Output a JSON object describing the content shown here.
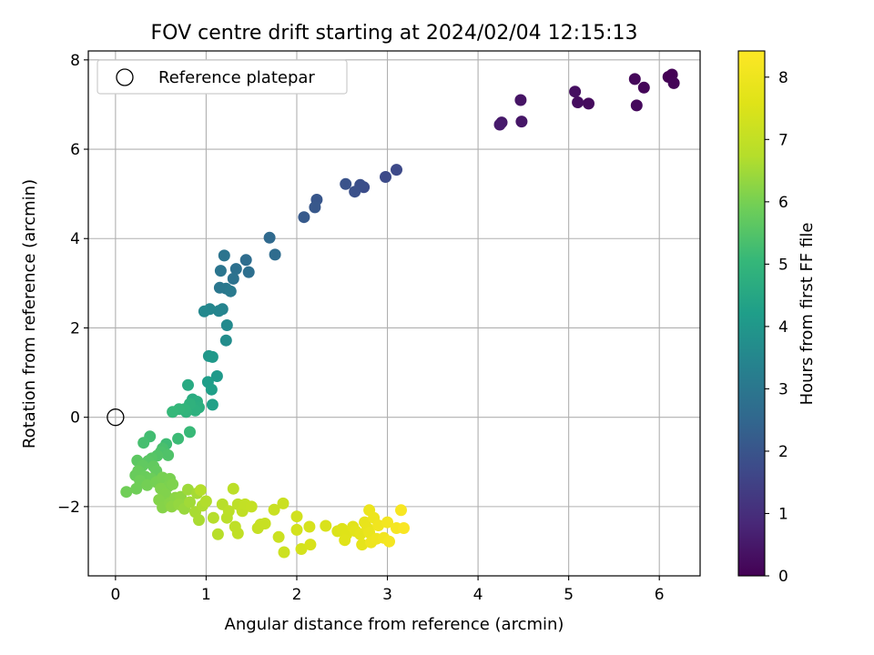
{
  "chart_data": {
    "type": "scatter",
    "title": "FOV centre drift starting at 2024/02/04 12:15:13",
    "xlabel": "Angular distance from reference (arcmin)",
    "ylabel": "Rotation from reference (arcmin)",
    "xlim": [
      -0.3,
      6.45
    ],
    "ylim": [
      -3.55,
      8.2
    ],
    "xticks": [
      0,
      1,
      2,
      3,
      4,
      5,
      6
    ],
    "yticks": [
      -2,
      0,
      2,
      4,
      6,
      8
    ],
    "grid": true,
    "legend": {
      "placement": "top-left",
      "entries": [
        {
          "label": "Reference platepar",
          "marker": "open-circle"
        }
      ]
    },
    "reference_point": {
      "x": 0,
      "y": 0
    },
    "colorbar": {
      "label": "Hours from first FF file",
      "min": 0,
      "max": 8.42,
      "ticks": [
        0,
        1,
        2,
        3,
        4,
        5,
        6,
        7,
        8
      ],
      "colormap": "viridis"
    },
    "series": [
      {
        "points": [
          {
            "x": 6.1,
            "y": 7.62,
            "h": 0.0
          },
          {
            "x": 6.14,
            "y": 7.67,
            "h": 0.03
          },
          {
            "x": 6.16,
            "y": 7.48,
            "h": 0.06
          },
          {
            "x": 5.83,
            "y": 7.38,
            "h": 0.1
          },
          {
            "x": 5.73,
            "y": 7.57,
            "h": 0.14
          },
          {
            "x": 5.75,
            "y": 6.98,
            "h": 0.18
          },
          {
            "x": 5.22,
            "y": 7.02,
            "h": 0.22
          },
          {
            "x": 5.1,
            "y": 7.05,
            "h": 0.26
          },
          {
            "x": 5.07,
            "y": 7.29,
            "h": 0.3
          },
          {
            "x": 4.47,
            "y": 7.1,
            "h": 0.4
          },
          {
            "x": 4.48,
            "y": 6.62,
            "h": 0.45
          },
          {
            "x": 4.26,
            "y": 6.6,
            "h": 0.5
          },
          {
            "x": 4.24,
            "y": 6.55,
            "h": 0.55
          },
          {
            "x": 3.1,
            "y": 5.54,
            "h": 1.7
          },
          {
            "x": 2.98,
            "y": 5.38,
            "h": 1.75
          },
          {
            "x": 2.74,
            "y": 5.15,
            "h": 1.8
          },
          {
            "x": 2.7,
            "y": 5.2,
            "h": 1.85
          },
          {
            "x": 2.64,
            "y": 5.05,
            "h": 1.9
          },
          {
            "x": 2.54,
            "y": 5.22,
            "h": 1.95
          },
          {
            "x": 2.22,
            "y": 4.87,
            "h": 2.05
          },
          {
            "x": 2.2,
            "y": 4.7,
            "h": 2.1
          },
          {
            "x": 2.08,
            "y": 4.48,
            "h": 2.15
          },
          {
            "x": 1.7,
            "y": 4.02,
            "h": 2.6
          },
          {
            "x": 1.76,
            "y": 3.64,
            "h": 2.65
          },
          {
            "x": 1.44,
            "y": 3.52,
            "h": 2.7
          },
          {
            "x": 1.47,
            "y": 3.25,
            "h": 2.75
          },
          {
            "x": 1.33,
            "y": 3.32,
            "h": 2.8
          },
          {
            "x": 1.3,
            "y": 3.1,
            "h": 2.85
          },
          {
            "x": 1.2,
            "y": 3.62,
            "h": 2.9
          },
          {
            "x": 1.16,
            "y": 3.28,
            "h": 2.95
          },
          {
            "x": 1.15,
            "y": 2.9,
            "h": 3.0
          },
          {
            "x": 1.22,
            "y": 2.88,
            "h": 3.05
          },
          {
            "x": 1.27,
            "y": 2.82,
            "h": 3.1
          },
          {
            "x": 1.18,
            "y": 2.42,
            "h": 3.4
          },
          {
            "x": 1.14,
            "y": 2.38,
            "h": 3.45
          },
          {
            "x": 1.04,
            "y": 2.42,
            "h": 3.5
          },
          {
            "x": 0.98,
            "y": 2.37,
            "h": 3.55
          },
          {
            "x": 1.23,
            "y": 2.06,
            "h": 3.6
          },
          {
            "x": 1.22,
            "y": 1.72,
            "h": 3.7
          },
          {
            "x": 1.03,
            "y": 1.37,
            "h": 4.0
          },
          {
            "x": 1.07,
            "y": 1.35,
            "h": 4.05
          },
          {
            "x": 1.12,
            "y": 0.92,
            "h": 4.1
          },
          {
            "x": 1.02,
            "y": 0.79,
            "h": 4.2
          },
          {
            "x": 1.06,
            "y": 0.62,
            "h": 4.25
          },
          {
            "x": 1.07,
            "y": 0.28,
            "h": 4.3
          },
          {
            "x": 0.8,
            "y": 0.72,
            "h": 4.6
          },
          {
            "x": 0.85,
            "y": 0.4,
            "h": 4.65
          },
          {
            "x": 0.9,
            "y": 0.35,
            "h": 4.7
          },
          {
            "x": 0.92,
            "y": 0.22,
            "h": 4.75
          },
          {
            "x": 0.88,
            "y": 0.15,
            "h": 4.8
          },
          {
            "x": 0.82,
            "y": 0.3,
            "h": 4.85
          },
          {
            "x": 0.78,
            "y": 0.12,
            "h": 4.9
          },
          {
            "x": 0.76,
            "y": 0.18,
            "h": 4.95
          },
          {
            "x": 0.7,
            "y": 0.18,
            "h": 5.0
          },
          {
            "x": 0.63,
            "y": 0.12,
            "h": 5.05
          },
          {
            "x": 0.82,
            "y": -0.33,
            "h": 5.1
          },
          {
            "x": 0.69,
            "y": -0.48,
            "h": 5.15
          },
          {
            "x": 0.56,
            "y": -0.6,
            "h": 5.2
          },
          {
            "x": 0.38,
            "y": -0.43,
            "h": 5.25
          },
          {
            "x": 0.31,
            "y": -0.57,
            "h": 5.3
          },
          {
            "x": 0.52,
            "y": -0.7,
            "h": 5.35
          },
          {
            "x": 0.5,
            "y": -0.78,
            "h": 5.4
          },
          {
            "x": 0.58,
            "y": -0.85,
            "h": 5.45
          },
          {
            "x": 0.46,
            "y": -0.86,
            "h": 5.5
          },
          {
            "x": 0.4,
            "y": -0.92,
            "h": 5.55
          },
          {
            "x": 0.36,
            "y": -0.98,
            "h": 5.6
          },
          {
            "x": 0.24,
            "y": -0.97,
            "h": 5.65
          },
          {
            "x": 0.3,
            "y": -1.08,
            "h": 5.7
          },
          {
            "x": 0.42,
            "y": -1.1,
            "h": 5.72
          },
          {
            "x": 0.45,
            "y": -1.2,
            "h": 5.75
          },
          {
            "x": 0.25,
            "y": -1.2,
            "h": 5.78
          },
          {
            "x": 0.22,
            "y": -1.3,
            "h": 5.8
          },
          {
            "x": 0.33,
            "y": -1.33,
            "h": 5.82
          },
          {
            "x": 0.4,
            "y": -1.38,
            "h": 5.85
          },
          {
            "x": 0.27,
            "y": -1.42,
            "h": 5.88
          },
          {
            "x": 0.23,
            "y": -1.6,
            "h": 5.9
          },
          {
            "x": 0.12,
            "y": -1.67,
            "h": 5.92
          },
          {
            "x": 0.35,
            "y": -1.52,
            "h": 5.95
          },
          {
            "x": 0.45,
            "y": -1.45,
            "h": 5.98
          },
          {
            "x": 0.52,
            "y": -1.35,
            "h": 6.0
          },
          {
            "x": 0.6,
            "y": -1.38,
            "h": 6.03
          },
          {
            "x": 0.58,
            "y": -1.55,
            "h": 6.05
          },
          {
            "x": 0.63,
            "y": -1.5,
            "h": 6.08
          },
          {
            "x": 0.5,
            "y": -1.6,
            "h": 6.1
          },
          {
            "x": 0.55,
            "y": -1.72,
            "h": 6.12
          },
          {
            "x": 0.48,
            "y": -1.85,
            "h": 6.15
          },
          {
            "x": 0.52,
            "y": -2.02,
            "h": 6.18
          },
          {
            "x": 0.6,
            "y": -1.92,
            "h": 6.2
          },
          {
            "x": 0.66,
            "y": -1.8,
            "h": 6.25
          },
          {
            "x": 0.62,
            "y": -2.0,
            "h": 6.28
          },
          {
            "x": 0.72,
            "y": -1.78,
            "h": 6.3
          },
          {
            "x": 0.7,
            "y": -1.95,
            "h": 6.35
          },
          {
            "x": 0.76,
            "y": -2.05,
            "h": 6.4
          },
          {
            "x": 0.8,
            "y": -1.62,
            "h": 6.45
          },
          {
            "x": 0.82,
            "y": -1.9,
            "h": 6.5
          },
          {
            "x": 0.9,
            "y": -1.7,
            "h": 6.55
          },
          {
            "x": 0.88,
            "y": -2.12,
            "h": 6.58
          },
          {
            "x": 0.92,
            "y": -2.3,
            "h": 6.6
          },
          {
            "x": 0.96,
            "y": -1.98,
            "h": 6.65
          },
          {
            "x": 1.0,
            "y": -1.88,
            "h": 6.7
          },
          {
            "x": 0.94,
            "y": -1.63,
            "h": 6.72
          },
          {
            "x": 1.08,
            "y": -2.25,
            "h": 6.75
          },
          {
            "x": 1.13,
            "y": -2.62,
            "h": 6.78
          },
          {
            "x": 1.18,
            "y": -1.95,
            "h": 6.8
          },
          {
            "x": 1.23,
            "y": -2.25,
            "h": 6.83
          },
          {
            "x": 1.25,
            "y": -2.1,
            "h": 6.85
          },
          {
            "x": 1.3,
            "y": -1.6,
            "h": 6.88
          },
          {
            "x": 1.35,
            "y": -1.95,
            "h": 6.9
          },
          {
            "x": 1.32,
            "y": -2.45,
            "h": 6.93
          },
          {
            "x": 1.35,
            "y": -2.6,
            "h": 6.95
          },
          {
            "x": 1.4,
            "y": -2.1,
            "h": 6.98
          },
          {
            "x": 1.43,
            "y": -1.95,
            "h": 7.0
          },
          {
            "x": 1.5,
            "y": -2.0,
            "h": 7.03
          },
          {
            "x": 1.57,
            "y": -2.48,
            "h": 7.05
          },
          {
            "x": 1.6,
            "y": -2.4,
            "h": 7.08
          },
          {
            "x": 1.65,
            "y": -2.38,
            "h": 7.1
          },
          {
            "x": 1.75,
            "y": -2.07,
            "h": 7.13
          },
          {
            "x": 1.85,
            "y": -1.93,
            "h": 7.15
          },
          {
            "x": 1.8,
            "y": -2.68,
            "h": 7.18
          },
          {
            "x": 1.86,
            "y": -3.02,
            "h": 7.2
          },
          {
            "x": 2.0,
            "y": -2.22,
            "h": 7.3
          },
          {
            "x": 2.0,
            "y": -2.52,
            "h": 7.33
          },
          {
            "x": 2.05,
            "y": -2.95,
            "h": 7.36
          },
          {
            "x": 2.14,
            "y": -2.45,
            "h": 7.4
          },
          {
            "x": 2.15,
            "y": -2.85,
            "h": 7.43
          },
          {
            "x": 2.32,
            "y": -2.43,
            "h": 7.46
          },
          {
            "x": 2.45,
            "y": -2.55,
            "h": 7.5
          },
          {
            "x": 2.5,
            "y": -2.5,
            "h": 7.55
          },
          {
            "x": 2.55,
            "y": -2.62,
            "h": 7.58
          },
          {
            "x": 2.53,
            "y": -2.75,
            "h": 7.62
          },
          {
            "x": 2.62,
            "y": -2.45,
            "h": 7.66
          },
          {
            "x": 2.65,
            "y": -2.55,
            "h": 7.7
          },
          {
            "x": 2.7,
            "y": -2.62,
            "h": 7.74
          },
          {
            "x": 2.72,
            "y": -2.85,
            "h": 7.78
          },
          {
            "x": 2.75,
            "y": -2.35,
            "h": 7.82
          },
          {
            "x": 2.78,
            "y": -2.48,
            "h": 7.86
          },
          {
            "x": 2.8,
            "y": -2.58,
            "h": 7.9
          },
          {
            "x": 2.8,
            "y": -2.08,
            "h": 7.93
          },
          {
            "x": 2.85,
            "y": -2.25,
            "h": 7.96
          },
          {
            "x": 2.82,
            "y": -2.8,
            "h": 8.0
          },
          {
            "x": 2.88,
            "y": -2.72,
            "h": 8.03
          },
          {
            "x": 2.9,
            "y": -2.42,
            "h": 8.06
          },
          {
            "x": 2.96,
            "y": -2.7,
            "h": 8.1
          },
          {
            "x": 3.0,
            "y": -2.35,
            "h": 8.13
          },
          {
            "x": 3.02,
            "y": -2.78,
            "h": 8.16
          },
          {
            "x": 3.1,
            "y": -2.48,
            "h": 8.2
          },
          {
            "x": 3.15,
            "y": -2.08,
            "h": 8.25
          },
          {
            "x": 3.18,
            "y": -2.48,
            "h": 8.3
          }
        ]
      }
    ]
  }
}
